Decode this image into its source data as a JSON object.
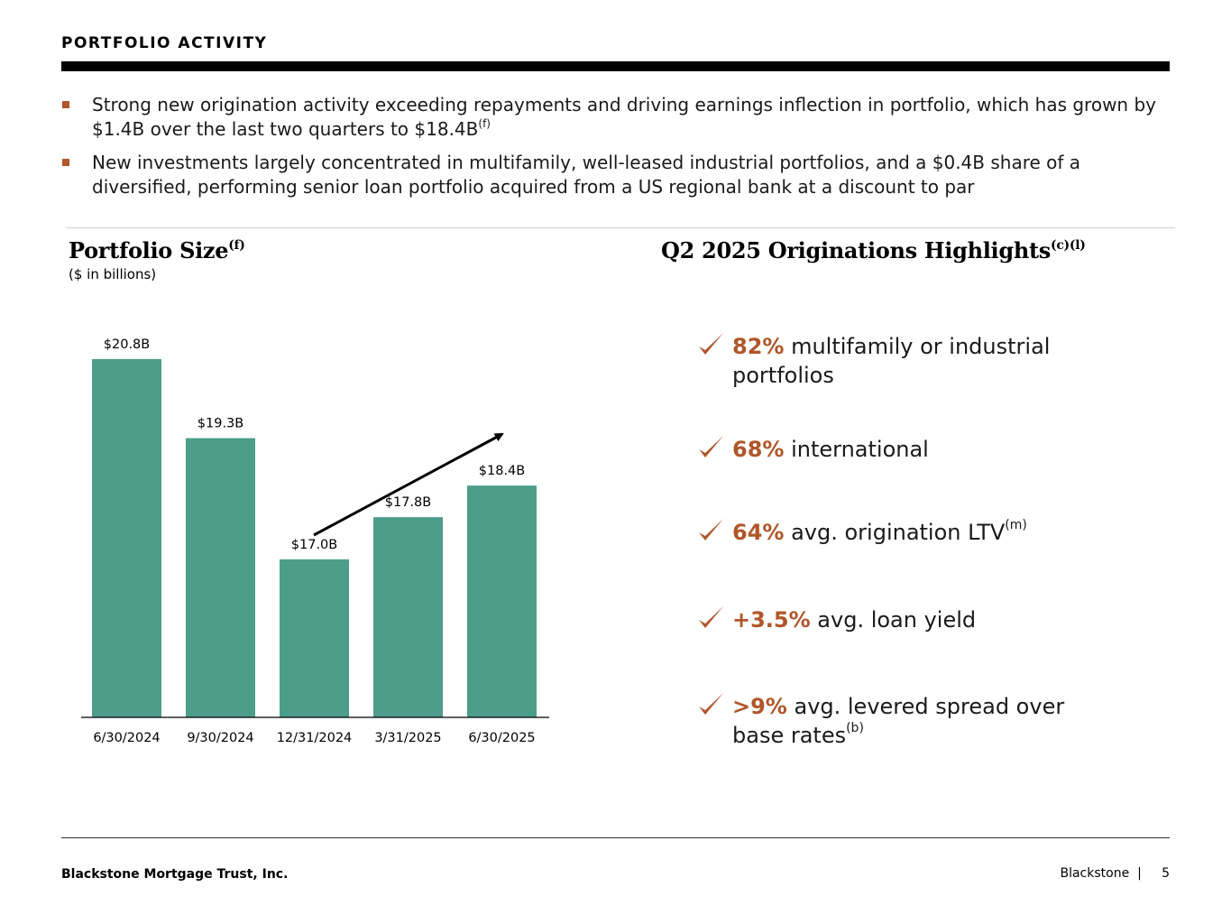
{
  "header": {
    "title": "PORTFOLIO ACTIVITY"
  },
  "bullets": [
    {
      "text": "Strong new origination activity exceeding repayments and driving earnings inflection in portfolio, which has grown by $1.4B over the last two quarters to $18.4B",
      "footnote": "(f)"
    },
    {
      "text": "New investments largely concentrated in multifamily, well-leased industrial portfolios, and a $0.4B share of a diversified, performing senior loan portfolio acquired from a US regional bank at a discount to par",
      "footnote": ""
    }
  ],
  "portfolio": {
    "title": "Portfolio Size",
    "title_footnote": "(f)",
    "units": "($ in billions)"
  },
  "chart_data": {
    "type": "bar",
    "title": "Portfolio Size",
    "ylabel": "$ in billions",
    "categories": [
      "6/30/2024",
      "9/30/2024",
      "12/31/2024",
      "3/31/2025",
      "6/30/2025"
    ],
    "values": [
      20.8,
      19.3,
      17.0,
      17.8,
      18.4
    ],
    "labels": [
      "$20.8B",
      "$19.3B",
      "$17.0B",
      "$17.8B",
      "$18.4B"
    ],
    "annotations": [
      "upward trend arrow from 12/31/2024 to 6/30/2025"
    ],
    "color": "#4c9e8a",
    "grid": false
  },
  "highlights": {
    "title": "Q2 2025 Originations Highlights",
    "title_footnote": "(c)(l)",
    "accent_color": "#b0562a",
    "items": [
      {
        "pct": "82%",
        "text": " multifamily or industrial portfolios",
        "footnote": ""
      },
      {
        "pct": "68%",
        "text": " international",
        "footnote": ""
      },
      {
        "pct": "64%",
        "text": " avg. origination LTV",
        "footnote": "(m)"
      },
      {
        "pct": "+3.5%",
        "text": " avg. loan yield",
        "footnote": ""
      },
      {
        "pct": ">9%",
        "text": " avg. levered spread over base rates",
        "footnote": "(b)"
      }
    ]
  },
  "footer": {
    "company": "Blackstone Mortgage Trust, Inc.",
    "brand": "Blackstone",
    "separator": "|",
    "page": "5"
  }
}
